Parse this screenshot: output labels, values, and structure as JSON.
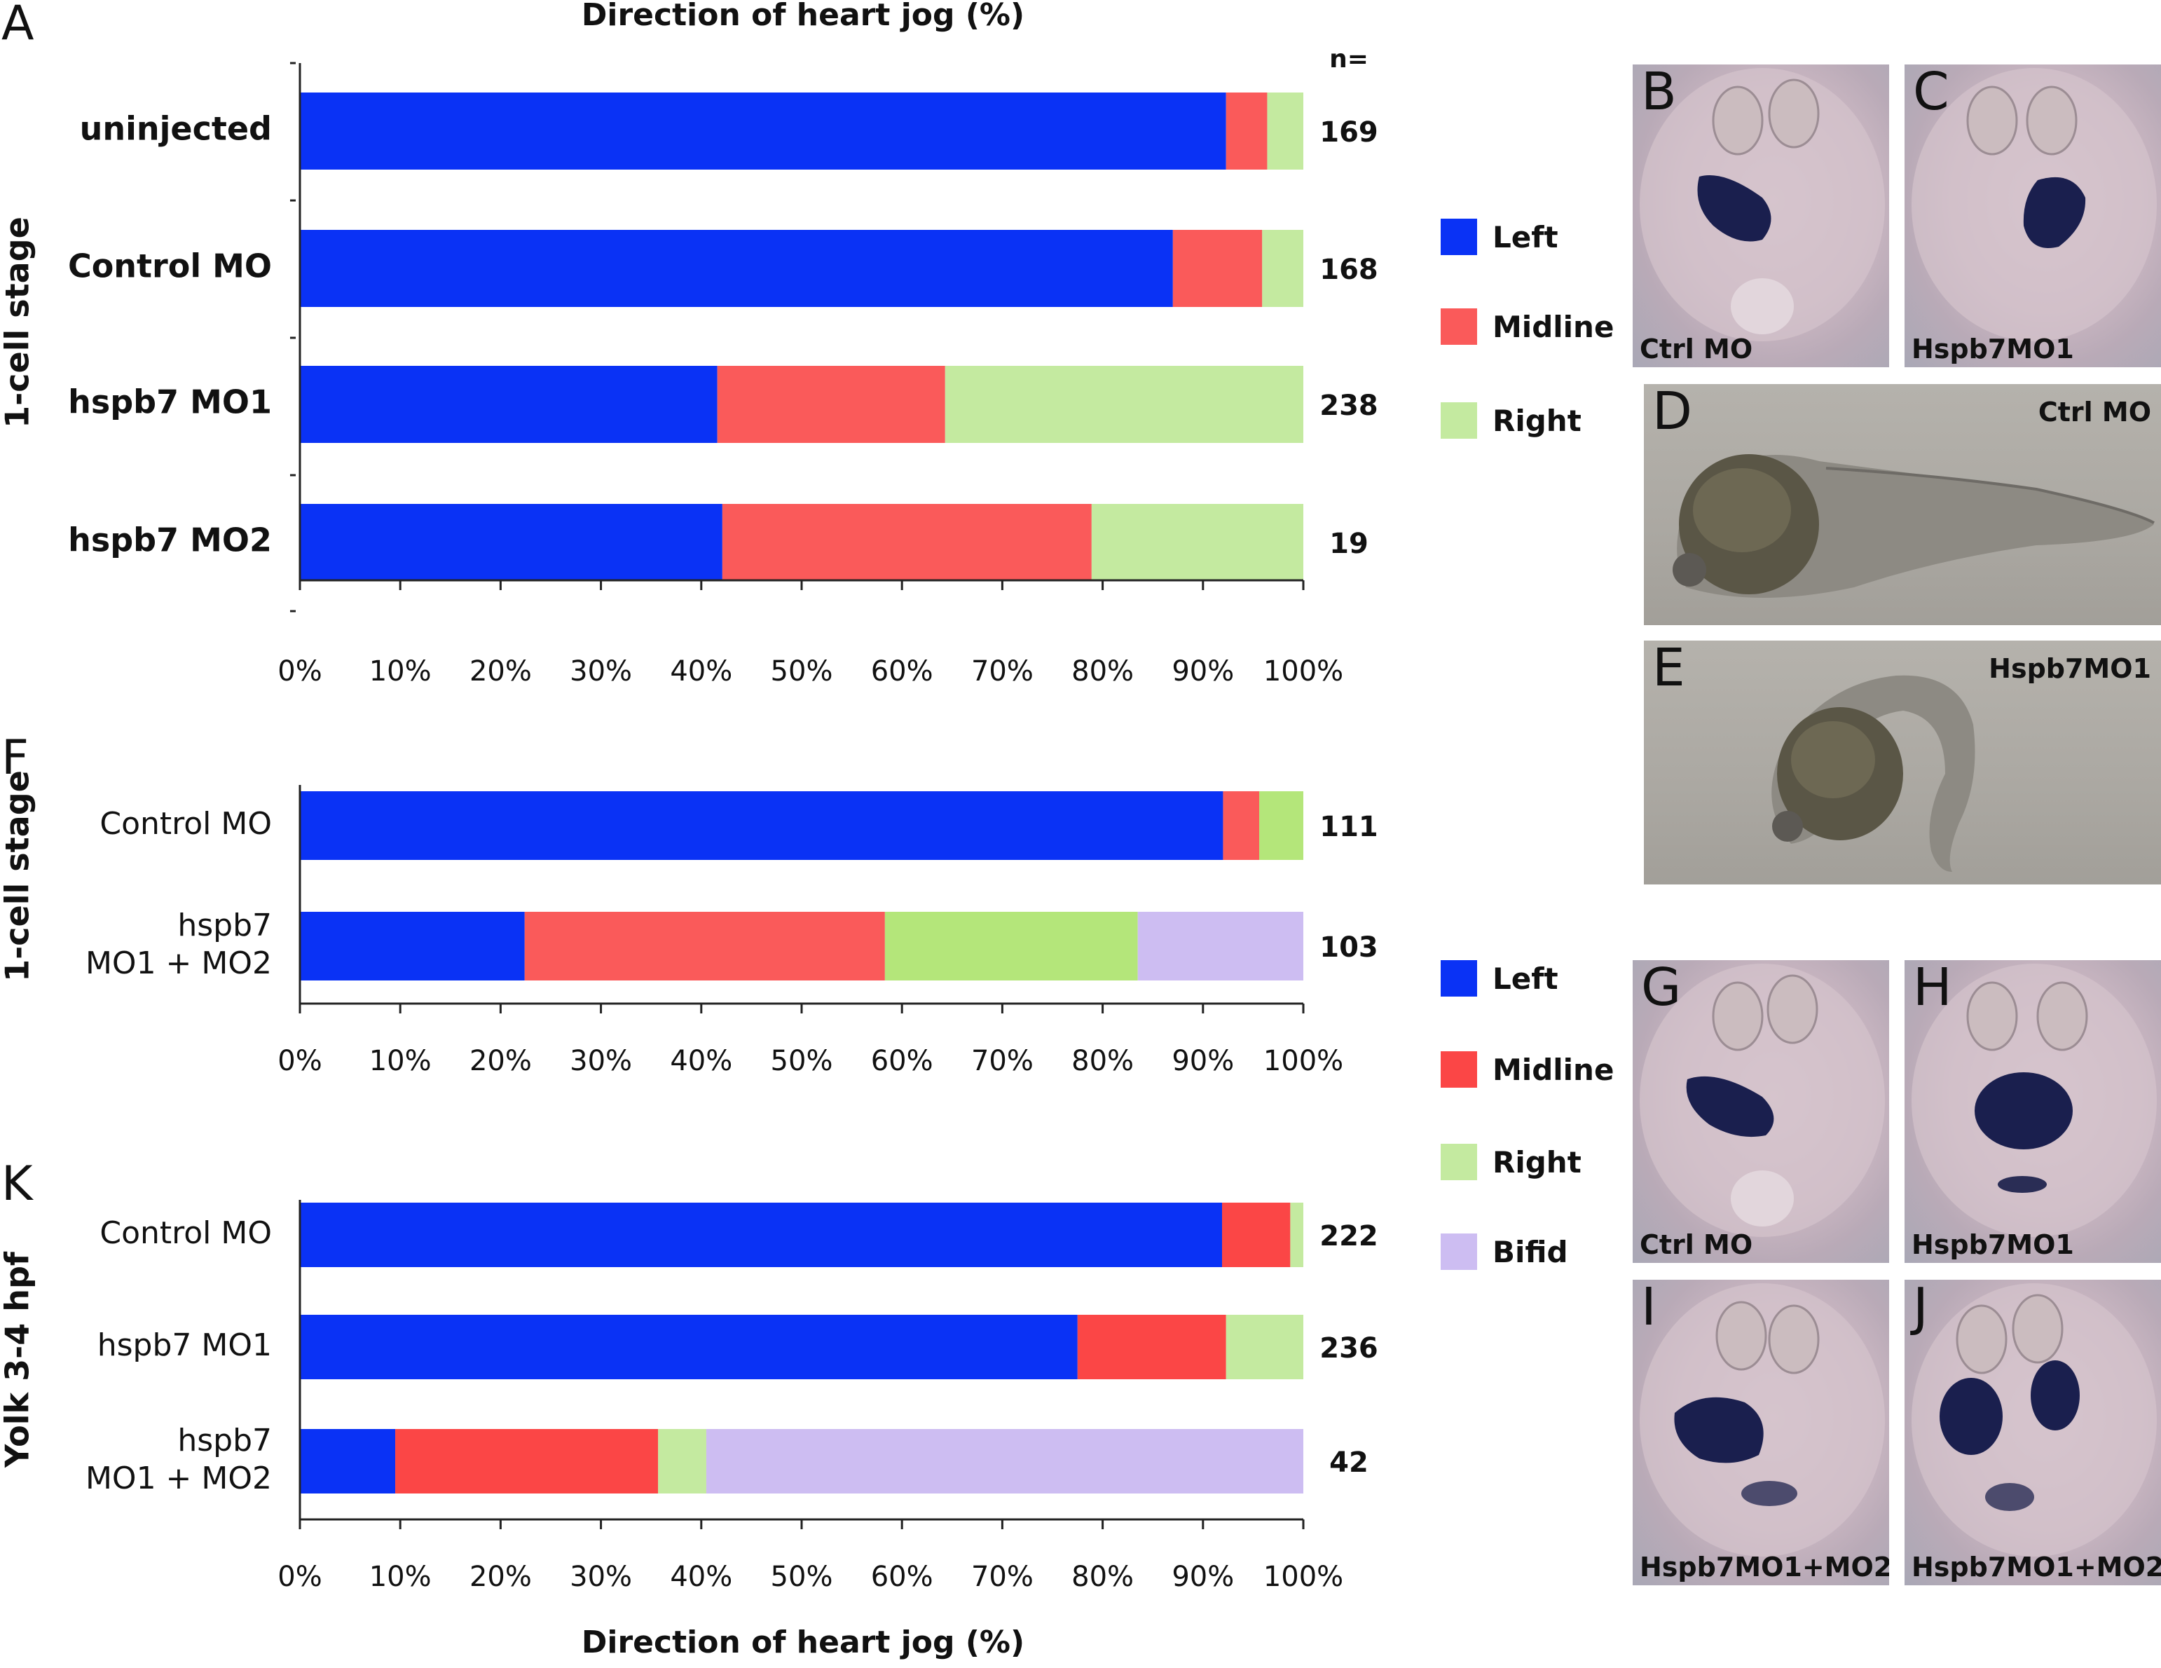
{
  "colors": {
    "left": "#0a32f5",
    "midline": "#fa5a5a",
    "right": "#c4eaa0",
    "right_f": "#b4e67a",
    "midline_k": "#fb4646",
    "bifid": "#cdbdf2"
  },
  "chart_data": [
    {
      "type": "bar",
      "orientation": "horizontal",
      "stacked": true,
      "panel": "A",
      "title": "Direction of heart jog (%)",
      "ylabel": "1-cell stage",
      "n_header": "n=",
      "categories": [
        "uninjected",
        "Control MO",
        "hspb7 MO1",
        "hspb7 MO2"
      ],
      "n": [
        "169",
        "168",
        "238",
        "19"
      ],
      "xlim": [
        0,
        100
      ],
      "xticks": [
        "0%",
        "10%",
        "20%",
        "30%",
        "40%",
        "50%",
        "60%",
        "70%",
        "80%",
        "90%",
        "100%"
      ],
      "series": [
        {
          "name": "Left",
          "values": [
            92.3,
            87.0,
            41.6,
            42.1
          ]
        },
        {
          "name": "Midline",
          "values": [
            4.1,
            8.9,
            22.7,
            36.8
          ]
        },
        {
          "name": "Right",
          "values": [
            3.6,
            4.1,
            35.7,
            21.1
          ]
        }
      ],
      "legend": [
        "Left",
        "Midline",
        "Right"
      ]
    },
    {
      "type": "bar",
      "orientation": "horizontal",
      "stacked": true,
      "panel": "F",
      "ylabel": "1-cell stage",
      "categories": [
        [
          "Control MO"
        ],
        [
          "hspb7",
          "MO1 + MO2"
        ]
      ],
      "n": [
        "111",
        "103"
      ],
      "xlim": [
        0,
        100
      ],
      "xticks": [
        "0%",
        "10%",
        "20%",
        "30%",
        "40%",
        "50%",
        "60%",
        "70%",
        "80%",
        "90%",
        "100%"
      ],
      "series": [
        {
          "name": "Left",
          "values": [
            92.0,
            22.4
          ]
        },
        {
          "name": "Midline",
          "values": [
            3.6,
            35.9
          ]
        },
        {
          "name": "Right",
          "values": [
            4.4,
            25.2
          ]
        },
        {
          "name": "Bifid",
          "values": [
            0,
            16.5
          ]
        }
      ],
      "legend": [
        "Left",
        "Midline",
        "Right",
        "Bifid"
      ]
    },
    {
      "type": "bar",
      "orientation": "horizontal",
      "stacked": true,
      "panel": "K",
      "ylabel": "Yolk 3-4 hpf",
      "xlabel": "Direction of heart jog (%)",
      "categories": [
        [
          "Control MO"
        ],
        [
          "hspb7 MO1"
        ],
        [
          "hspb7",
          "MO1 + MO2"
        ]
      ],
      "n": [
        "222",
        "236",
        "42"
      ],
      "xlim": [
        0,
        100
      ],
      "xticks": [
        "0%",
        "10%",
        "20%",
        "30%",
        "40%",
        "50%",
        "60%",
        "70%",
        "80%",
        "90%",
        "100%"
      ],
      "series": [
        {
          "name": "Left",
          "values": [
            91.9,
            77.5,
            9.5
          ]
        },
        {
          "name": "Midline",
          "values": [
            6.8,
            14.8,
            26.2
          ]
        },
        {
          "name": "Right",
          "values": [
            1.3,
            7.7,
            4.8
          ]
        },
        {
          "name": "Bifid",
          "values": [
            0,
            0,
            59.5
          ]
        }
      ]
    }
  ],
  "panel_letters": {
    "a": "A",
    "f": "F",
    "k": "K"
  },
  "legend_top": [
    "Left",
    "Midline",
    "Right"
  ],
  "legend_bottom": [
    "Left",
    "Midline",
    "Right",
    "Bifid"
  ],
  "photos": {
    "b": {
      "letter": "B",
      "caption": "Ctrl MO"
    },
    "c": {
      "letter": "C",
      "caption": "Hspb7MO1"
    },
    "d": {
      "letter": "D",
      "caption": "Ctrl MO"
    },
    "e": {
      "letter": "E",
      "caption": "Hspb7MO1"
    },
    "g": {
      "letter": "G",
      "caption": "Ctrl MO"
    },
    "h": {
      "letter": "H",
      "caption": "Hspb7MO1"
    },
    "i": {
      "letter": "I",
      "caption": "Hspb7MO1+MO2"
    },
    "j": {
      "letter": "J",
      "caption": "Hspb7MO1+MO2"
    }
  }
}
